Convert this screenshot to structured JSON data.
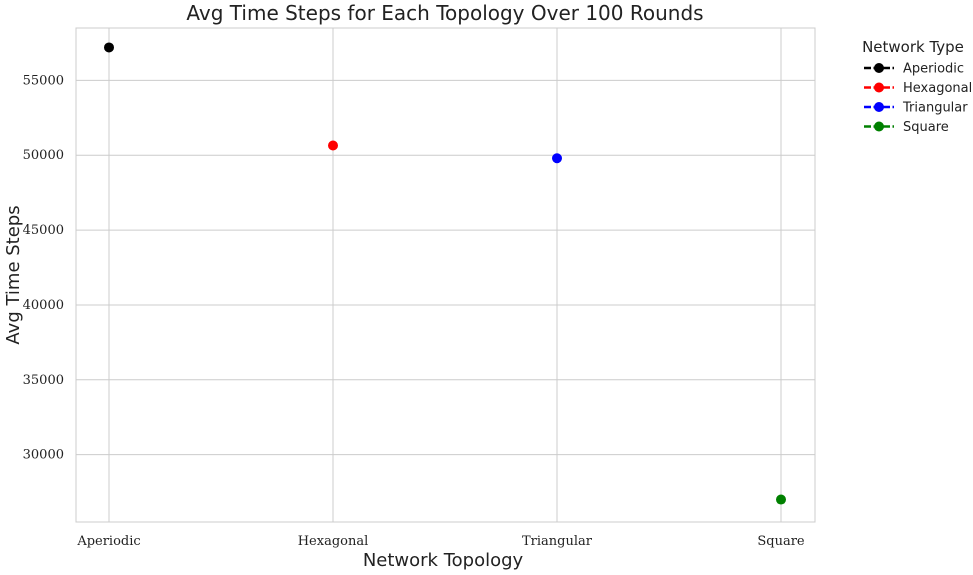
{
  "chart_data": {
    "type": "scatter",
    "title": "Avg Time Steps for Each Topology Over 100 Rounds",
    "xlabel": "Network Topology",
    "ylabel": "Avg Time Steps",
    "categories": [
      "Aperiodic",
      "Hexagonal",
      "Triangular",
      "Square"
    ],
    "ylim": [
      25500,
      58500
    ],
    "yticks": [
      30000,
      35000,
      40000,
      45000,
      50000,
      55000
    ],
    "grid": true,
    "legend": {
      "title": "Network Type",
      "placement": "outside-top-right"
    },
    "series": [
      {
        "name": "Aperiodic",
        "color": "#000000",
        "x": "Aperiodic",
        "y": 57200
      },
      {
        "name": "Hexagonal",
        "color": "#ff0000",
        "x": "Hexagonal",
        "y": 50650
      },
      {
        "name": "Triangular",
        "color": "#0000ff",
        "x": "Triangular",
        "y": 49800
      },
      {
        "name": "Square",
        "color": "#008000",
        "x": "Square",
        "y": 27000
      }
    ]
  }
}
